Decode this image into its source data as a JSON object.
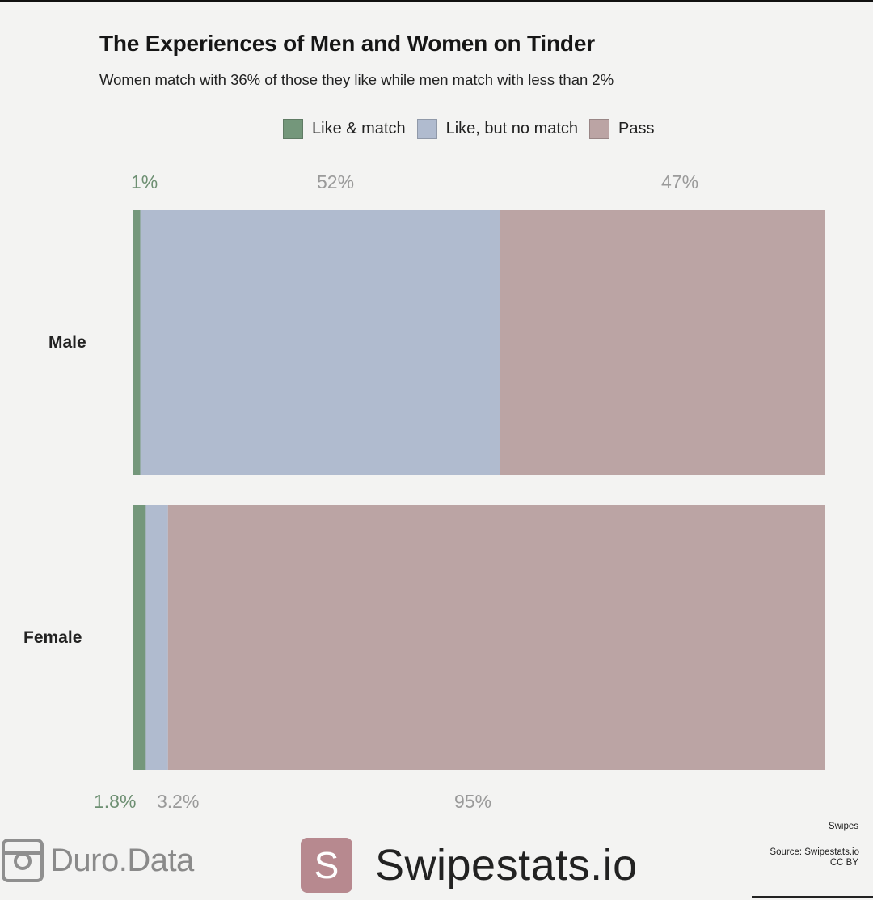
{
  "title": "The Experiences of Men and Women on Tinder",
  "subtitle": "Women match with 36% of those they like while men match with less than 2%",
  "colors": {
    "like_match": "#74977b",
    "like_no_match": "#b0bbcf",
    "pass": "#bba4a4"
  },
  "chart_data": {
    "type": "bar",
    "orientation": "horizontal",
    "stacked": true,
    "normalized_to": 100,
    "categories": [
      "Male",
      "Female"
    ],
    "series": [
      {
        "name": "Like & match",
        "values": [
          1,
          1.8
        ],
        "labels": [
          "1%",
          "1.8%"
        ]
      },
      {
        "name": "Like, but no match",
        "values": [
          52,
          3.2
        ],
        "labels": [
          "52%",
          "3.2%"
        ]
      },
      {
        "name": "Pass",
        "values": [
          47,
          95
        ],
        "labels": [
          "47%",
          "95%"
        ]
      }
    ],
    "legend_position": "top",
    "grid": false
  },
  "footer": {
    "brand_left": "Duro.Data",
    "brand_right_letter": "S",
    "brand_right": "Swipestats.io",
    "note_top": "Swipes",
    "note_source": "Source: Swipestats.io",
    "note_license": "CC BY"
  }
}
